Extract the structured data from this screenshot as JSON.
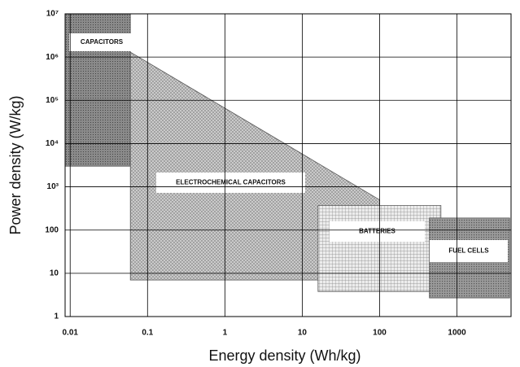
{
  "chart_data": {
    "type": "region",
    "xlabel": "Energy density (Wh/kg)",
    "ylabel": "Power density (W/kg)",
    "xscale": "log",
    "yscale": "log",
    "grid": true,
    "xlim": [
      0.0086,
      5000
    ],
    "ylim": [
      1,
      10000000
    ],
    "xticks": [
      {
        "value": 0.01,
        "label": "0.01"
      },
      {
        "value": 0.1,
        "label": "0.1"
      },
      1,
      10,
      100,
      1000
    ],
    "yticks": [
      1,
      10,
      100,
      {
        "value": 1000,
        "label": "10³"
      },
      {
        "value": 10000,
        "label": "10⁴"
      },
      {
        "value": 100000,
        "label": "10⁵"
      },
      {
        "value": 1000000,
        "label": "10⁶"
      },
      {
        "value": 10000000,
        "label": "10⁷"
      }
    ],
    "series": [
      {
        "name": "CAPACITORS",
        "color": "#8a8a8a",
        "x": [
          0.0086,
          0.06,
          0.06,
          0.0086
        ],
        "y": [
          10000000,
          10000000,
          3000,
          3000
        ]
      },
      {
        "name": "ELECTROCHEMICAL CAPACITORS",
        "color": "#c8c8c8",
        "x": [
          0.06,
          100,
          100,
          0.06
        ],
        "y": [
          1300000,
          500,
          7,
          7
        ]
      },
      {
        "name": "BATTERIES",
        "color": "#e4e4e4",
        "x": [
          16,
          620,
          620,
          16
        ],
        "y": [
          370,
          370,
          3.8,
          3.8
        ]
      },
      {
        "name": "FUEL CELLS",
        "color": "#9a9a9a",
        "x": [
          440,
          4800,
          4800,
          440
        ],
        "y": [
          190,
          190,
          2.7,
          2.7
        ]
      }
    ]
  }
}
